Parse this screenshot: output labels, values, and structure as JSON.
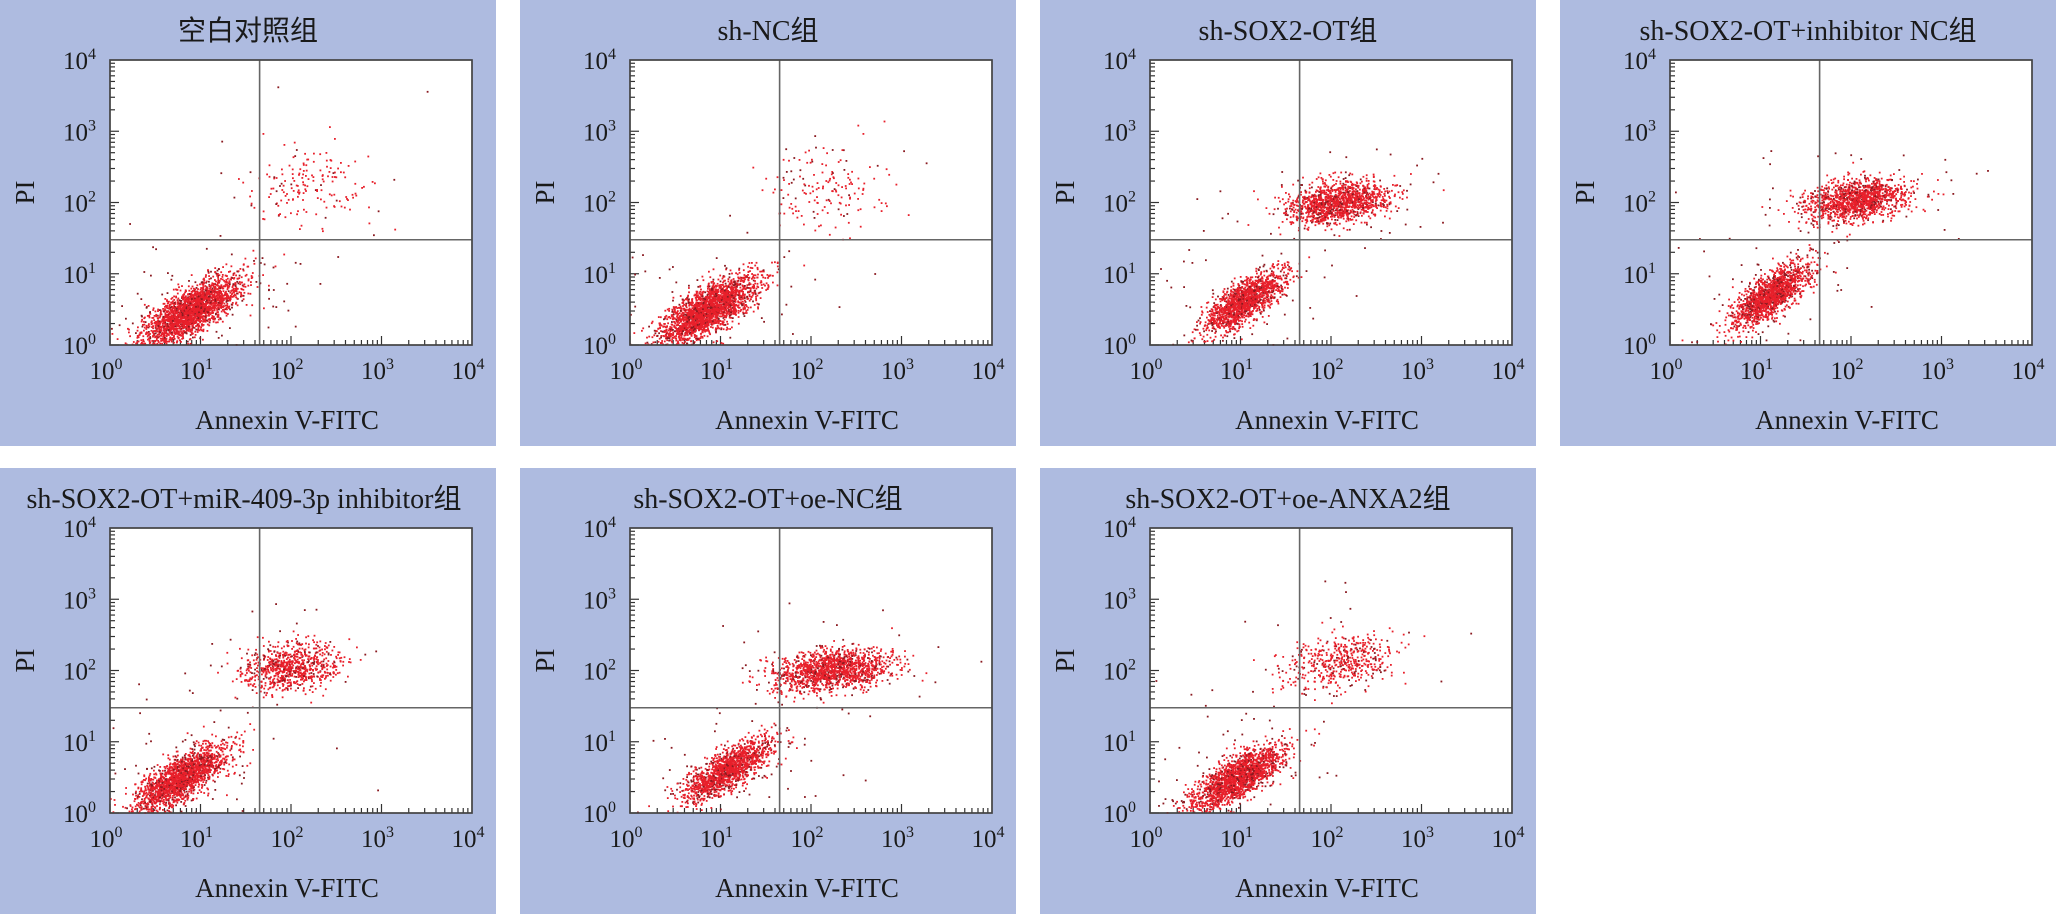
{
  "chart_data": [
    {
      "type": "scatter",
      "title": "空白对照组",
      "xlabel": "Annexin V-FITC",
      "ylabel": "PI",
      "scale": "log",
      "xlim": [
        1,
        10000
      ],
      "ylim": [
        1,
        10000
      ],
      "x_ticks": [
        "10",
        "10",
        "10",
        "10",
        "10"
      ],
      "x_tick_exp": [
        "0",
        "1",
        "2",
        "3",
        "4"
      ],
      "y_ticks": [
        "10",
        "10",
        "10",
        "10",
        "10"
      ],
      "y_tick_exp": [
        "0",
        "1",
        "2",
        "3",
        "4"
      ],
      "gate": {
        "x": 45,
        "y": 30
      },
      "clusters": [
        {
          "cx": 8,
          "cy": 3,
          "sx": 0.27,
          "sy": 0.24,
          "rho": 0.75,
          "n": 2300
        },
        {
          "cx": 150,
          "cy": 180,
          "sx": 0.35,
          "sy": 0.28,
          "rho": 0,
          "n": 170
        }
      ]
    },
    {
      "type": "scatter",
      "title": "sh-NC组",
      "xlabel": "Annexin V-FITC",
      "ylabel": "PI",
      "scale": "log",
      "xlim": [
        1,
        10000
      ],
      "ylim": [
        1,
        10000
      ],
      "x_ticks": [
        "10",
        "10",
        "10",
        "10",
        "10"
      ],
      "x_tick_exp": [
        "0",
        "1",
        "2",
        "3",
        "4"
      ],
      "y_ticks": [
        "10",
        "10",
        "10",
        "10",
        "10"
      ],
      "y_tick_exp": [
        "0",
        "1",
        "2",
        "3",
        "4"
      ],
      "gate": {
        "x": 45,
        "y": 30
      },
      "clusters": [
        {
          "cx": 7,
          "cy": 3,
          "sx": 0.27,
          "sy": 0.24,
          "rho": 0.75,
          "n": 2300
        },
        {
          "cx": 150,
          "cy": 150,
          "sx": 0.35,
          "sy": 0.3,
          "rho": 0,
          "n": 160
        }
      ]
    },
    {
      "type": "scatter",
      "title": "sh-SOX2-OT组",
      "xlabel": "Annexin V-FITC",
      "ylabel": "PI",
      "scale": "log",
      "xlim": [
        1,
        10000
      ],
      "ylim": [
        1,
        10000
      ],
      "x_ticks": [
        "10",
        "10",
        "10",
        "10",
        "10"
      ],
      "x_tick_exp": [
        "0",
        "1",
        "2",
        "3",
        "4"
      ],
      "y_ticks": [
        "10",
        "10",
        "10",
        "10",
        "10"
      ],
      "y_tick_exp": [
        "0",
        "1",
        "2",
        "3",
        "4"
      ],
      "gate": {
        "x": 45,
        "y": 30
      },
      "clusters": [
        {
          "cx": 11,
          "cy": 4,
          "sx": 0.22,
          "sy": 0.22,
          "rho": 0.75,
          "n": 1500
        },
        {
          "cx": 120,
          "cy": 100,
          "sx": 0.28,
          "sy": 0.15,
          "rho": 0.3,
          "n": 1300
        }
      ]
    },
    {
      "type": "scatter",
      "title": "sh-SOX2-OT+inhibitor NC组",
      "xlabel": "Annexin V-FITC",
      "ylabel": "PI",
      "scale": "log",
      "xlim": [
        1,
        10000
      ],
      "ylim": [
        1,
        10000
      ],
      "x_ticks": [
        "10",
        "10",
        "10",
        "10",
        "10"
      ],
      "x_tick_exp": [
        "0",
        "1",
        "2",
        "3",
        "4"
      ],
      "y_ticks": [
        "10",
        "10",
        "10",
        "10",
        "10"
      ],
      "y_tick_exp": [
        "0",
        "1",
        "2",
        "3",
        "4"
      ],
      "gate": {
        "x": 45,
        "y": 30
      },
      "clusters": [
        {
          "cx": 13,
          "cy": 5,
          "sx": 0.22,
          "sy": 0.22,
          "rho": 0.75,
          "n": 1500
        },
        {
          "cx": 120,
          "cy": 110,
          "sx": 0.28,
          "sy": 0.15,
          "rho": 0.3,
          "n": 1300
        }
      ]
    },
    {
      "type": "scatter",
      "title": "sh-SOX2-OT+miR-409-3p inhibitor组",
      "xlabel": "Annexin V-FITC",
      "ylabel": "PI",
      "scale": "log",
      "xlim": [
        1,
        10000
      ],
      "ylim": [
        1,
        10000
      ],
      "x_ticks": [
        "10",
        "10",
        "10",
        "10",
        "10"
      ],
      "x_tick_exp": [
        "0",
        "1",
        "2",
        "3",
        "4"
      ],
      "y_ticks": [
        "10",
        "10",
        "10",
        "10",
        "10"
      ],
      "y_tick_exp": [
        "0",
        "1",
        "2",
        "3",
        "4"
      ],
      "gate": {
        "x": 45,
        "y": 30
      },
      "clusters": [
        {
          "cx": 6,
          "cy": 3,
          "sx": 0.25,
          "sy": 0.23,
          "rho": 0.75,
          "n": 1900
        },
        {
          "cx": 100,
          "cy": 110,
          "sx": 0.27,
          "sy": 0.17,
          "rho": 0.2,
          "n": 800
        }
      ]
    },
    {
      "type": "scatter",
      "title": "sh-SOX2-OT+oe-NC组",
      "xlabel": "Annexin V-FITC",
      "ylabel": "PI",
      "scale": "log",
      "xlim": [
        1,
        10000
      ],
      "ylim": [
        1,
        10000
      ],
      "x_ticks": [
        "10",
        "10",
        "10",
        "10",
        "10"
      ],
      "x_tick_exp": [
        "0",
        "1",
        "2",
        "3",
        "4"
      ],
      "y_ticks": [
        "10",
        "10",
        "10",
        "10",
        "10"
      ],
      "y_tick_exp": [
        "0",
        "1",
        "2",
        "3",
        "4"
      ],
      "gate": {
        "x": 45,
        "y": 30
      },
      "clusters": [
        {
          "cx": 12,
          "cy": 4,
          "sx": 0.24,
          "sy": 0.22,
          "rho": 0.75,
          "n": 1500
        },
        {
          "cx": 170,
          "cy": 100,
          "sx": 0.33,
          "sy": 0.15,
          "rho": 0.3,
          "n": 1400
        }
      ]
    },
    {
      "type": "scatter",
      "title": "sh-SOX2-OT+oe-ANXA2组",
      "xlabel": "Annexin V-FITC",
      "ylabel": "PI",
      "scale": "log",
      "xlim": [
        1,
        10000
      ],
      "ylim": [
        1,
        10000
      ],
      "x_ticks": [
        "10",
        "10",
        "10",
        "10",
        "10"
      ],
      "x_tick_exp": [
        "0",
        "1",
        "2",
        "3",
        "4"
      ],
      "y_ticks": [
        "10",
        "10",
        "10",
        "10",
        "10"
      ],
      "y_tick_exp": [
        "0",
        "1",
        "2",
        "3",
        "4"
      ],
      "gate": {
        "x": 45,
        "y": 30
      },
      "clusters": [
        {
          "cx": 9,
          "cy": 3,
          "sx": 0.25,
          "sy": 0.23,
          "rho": 0.75,
          "n": 1900
        },
        {
          "cx": 130,
          "cy": 130,
          "sx": 0.3,
          "sy": 0.2,
          "rho": 0.3,
          "n": 500
        }
      ]
    }
  ],
  "colors": {
    "panel_bg": "#aebbe0",
    "dot": "#e8202b",
    "dot_dark": "#8a1a20"
  }
}
